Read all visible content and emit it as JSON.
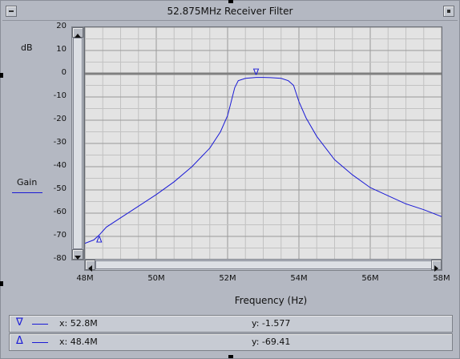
{
  "window": {
    "title": "52.875MHz Receiver Filter"
  },
  "chart_data": {
    "type": "line",
    "title": "",
    "xlabel": "Frequency (Hz)",
    "ylabel": "dB",
    "xlim": [
      48,
      58
    ],
    "ylim": [
      -80,
      20
    ],
    "x_ticks": [
      "48M",
      "50M",
      "52M",
      "54M",
      "56M",
      "58M"
    ],
    "y_ticks": [
      "20",
      "10",
      "0",
      "-10",
      "-20",
      "-30",
      "-40",
      "-50",
      "-60",
      "-70",
      "-80"
    ],
    "grid": true,
    "legend": {
      "placement": "left",
      "entries": [
        {
          "name": "Gain",
          "color": "#1a1ad6"
        }
      ]
    },
    "series": [
      {
        "name": "Gain",
        "color": "#1a1ad6",
        "x": [
          48.0,
          48.25,
          48.4,
          48.6,
          49.0,
          49.5,
          50.0,
          50.5,
          51.0,
          51.5,
          51.8,
          52.0,
          52.1,
          52.2,
          52.3,
          52.5,
          52.8,
          53.0,
          53.2,
          53.5,
          53.7,
          53.85,
          54.0,
          54.2,
          54.5,
          55.0,
          55.5,
          56.0,
          56.5,
          57.0,
          57.5,
          58.0
        ],
        "values": [
          -73,
          -71.5,
          -69.4,
          -66,
          -62,
          -57,
          -52,
          -46.5,
          -40,
          -32,
          -25,
          -18,
          -12,
          -6,
          -3,
          -2,
          -1.6,
          -1.6,
          -1.7,
          -2,
          -3,
          -5,
          -12,
          -19,
          -27,
          -37,
          -43.5,
          -49,
          -52.5,
          -56,
          -58.5,
          -61.5
        ]
      }
    ],
    "reference_line": {
      "y": 0
    },
    "markers": [
      {
        "symbol": "∇",
        "x": 52.8,
        "y": -1.577
      },
      {
        "symbol": "Δ",
        "x": 48.4,
        "y": -69.41
      }
    ]
  },
  "marker_readouts": [
    {
      "symbol": "∇",
      "x_text": "x: 52.8M",
      "y_text": "y: -1.577"
    },
    {
      "symbol": "Δ",
      "x_text": "x: 48.4M",
      "y_text": "y: -69.41"
    }
  ]
}
